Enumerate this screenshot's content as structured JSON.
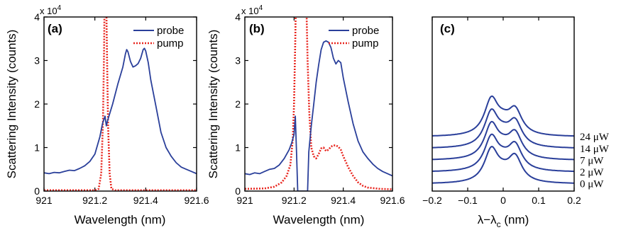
{
  "chart_data": [
    {
      "panel_label": "(a)",
      "type": "line",
      "xlabel": "Wavelength (nm)",
      "ylabel": "Scattering Intensity (counts)",
      "multiplier": "x 10",
      "multiplier_exp": "4",
      "xlim": [
        921.0,
        921.6
      ],
      "ylim": [
        0,
        4
      ],
      "xticks": [
        "921",
        "921.2",
        "921.4",
        "921.6"
      ],
      "yticks": [
        "0",
        "1",
        "2",
        "3",
        "4"
      ],
      "legend_position": "top-right",
      "series": [
        {
          "name": "probe",
          "color": "#2a3f9a",
          "style": "solid",
          "points": [
            [
              921.0,
              0.42
            ],
            [
              921.02,
              0.4
            ],
            [
              921.04,
              0.43
            ],
            [
              921.06,
              0.42
            ],
            [
              921.08,
              0.45
            ],
            [
              921.1,
              0.48
            ],
            [
              921.12,
              0.47
            ],
            [
              921.14,
              0.52
            ],
            [
              921.16,
              0.58
            ],
            [
              921.18,
              0.68
            ],
            [
              921.2,
              0.85
            ],
            [
              921.22,
              1.25
            ],
            [
              921.23,
              1.55
            ],
            [
              921.24,
              1.72
            ],
            [
              921.245,
              1.5
            ],
            [
              921.25,
              1.62
            ],
            [
              921.27,
              2.0
            ],
            [
              921.29,
              2.45
            ],
            [
              921.31,
              2.85
            ],
            [
              921.32,
              3.15
            ],
            [
              921.325,
              3.25
            ],
            [
              921.33,
              3.2
            ],
            [
              921.34,
              2.98
            ],
            [
              921.35,
              2.85
            ],
            [
              921.36,
              2.88
            ],
            [
              921.37,
              2.93
            ],
            [
              921.38,
              3.05
            ],
            [
              921.39,
              3.25
            ],
            [
              921.395,
              3.28
            ],
            [
              921.4,
              3.22
            ],
            [
              921.41,
              2.95
            ],
            [
              921.42,
              2.55
            ],
            [
              921.44,
              1.95
            ],
            [
              921.46,
              1.35
            ],
            [
              921.48,
              1.0
            ],
            [
              921.5,
              0.8
            ],
            [
              921.52,
              0.65
            ],
            [
              921.54,
              0.55
            ],
            [
              921.56,
              0.5
            ],
            [
              921.58,
              0.45
            ],
            [
              921.6,
              0.4
            ]
          ]
        },
        {
          "name": "pump",
          "color": "#e8251e",
          "style": "dotted",
          "points": [
            [
              921.0,
              0.02
            ],
            [
              921.2,
              0.02
            ],
            [
              921.215,
              0.05
            ],
            [
              921.225,
              0.4
            ],
            [
              921.232,
              1.6
            ],
            [
              921.236,
              3.2
            ],
            [
              921.238,
              4.3
            ],
            [
              921.245,
              4.3
            ],
            [
              921.248,
              3.0
            ],
            [
              921.252,
              1.5
            ],
            [
              921.258,
              0.4
            ],
            [
              921.265,
              0.05
            ],
            [
              921.28,
              0.02
            ],
            [
              921.6,
              0.02
            ]
          ]
        }
      ]
    },
    {
      "panel_label": "(b)",
      "type": "line",
      "xlabel": "Wavelength (nm)",
      "ylabel": "Scattering Intensity (counts)",
      "multiplier": "x 10",
      "multiplier_exp": "4",
      "xlim": [
        921.0,
        921.6
      ],
      "ylim": [
        0,
        4
      ],
      "xticks": [
        "921",
        "921.2",
        "921.4",
        "921.6"
      ],
      "yticks": [
        "0",
        "1",
        "2",
        "3",
        "4"
      ],
      "legend_position": "top-right",
      "series": [
        {
          "name": "probe",
          "color": "#2a3f9a",
          "style": "solid",
          "points": [
            [
              921.0,
              0.4
            ],
            [
              921.02,
              0.38
            ],
            [
              921.04,
              0.42
            ],
            [
              921.06,
              0.4
            ],
            [
              921.08,
              0.45
            ],
            [
              921.1,
              0.5
            ],
            [
              921.12,
              0.52
            ],
            [
              921.14,
              0.6
            ],
            [
              921.16,
              0.75
            ],
            [
              921.18,
              0.95
            ],
            [
              921.19,
              1.1
            ],
            [
              921.2,
              1.3
            ],
            [
              921.205,
              1.72
            ],
            [
              921.21,
              0.9
            ],
            [
              921.215,
              0.0
            ],
            [
              921.255,
              0.0
            ],
            [
              921.26,
              0.9
            ],
            [
              921.27,
              1.5
            ],
            [
              921.28,
              2.0
            ],
            [
              921.29,
              2.5
            ],
            [
              921.3,
              2.9
            ],
            [
              921.31,
              3.25
            ],
            [
              921.32,
              3.42
            ],
            [
              921.33,
              3.45
            ],
            [
              921.34,
              3.42
            ],
            [
              921.35,
              3.3
            ],
            [
              921.36,
              3.05
            ],
            [
              921.37,
              2.92
            ],
            [
              921.38,
              3.0
            ],
            [
              921.39,
              2.95
            ],
            [
              921.4,
              2.6
            ],
            [
              921.42,
              2.05
            ],
            [
              921.44,
              1.55
            ],
            [
              921.46,
              1.15
            ],
            [
              921.48,
              0.9
            ],
            [
              921.5,
              0.75
            ],
            [
              921.52,
              0.62
            ],
            [
              921.54,
              0.52
            ],
            [
              921.56,
              0.45
            ],
            [
              921.58,
              0.4
            ],
            [
              921.6,
              0.35
            ]
          ]
        },
        {
          "name": "pump",
          "color": "#e8251e",
          "style": "dotted",
          "points": [
            [
              921.0,
              0.05
            ],
            [
              921.08,
              0.06
            ],
            [
              921.12,
              0.1
            ],
            [
              921.15,
              0.2
            ],
            [
              921.17,
              0.35
            ],
            [
              921.185,
              0.6
            ],
            [
              921.195,
              1.2
            ],
            [
              921.2,
              2.0
            ],
            [
              921.205,
              3.5
            ],
            [
              921.207,
              4.3
            ],
            [
              921.25,
              4.3
            ],
            [
              921.255,
              3.0
            ],
            [
              921.262,
              1.8
            ],
            [
              921.27,
              1.0
            ],
            [
              921.28,
              0.8
            ],
            [
              921.29,
              0.75
            ],
            [
              921.3,
              0.85
            ],
            [
              921.31,
              0.98
            ],
            [
              921.32,
              1.0
            ],
            [
              921.33,
              0.92
            ],
            [
              921.34,
              0.95
            ],
            [
              921.35,
              1.02
            ],
            [
              921.36,
              1.05
            ],
            [
              921.37,
              1.05
            ],
            [
              921.38,
              1.02
            ],
            [
              921.39,
              0.95
            ],
            [
              921.4,
              0.8
            ],
            [
              921.42,
              0.55
            ],
            [
              921.44,
              0.35
            ],
            [
              921.46,
              0.2
            ],
            [
              921.48,
              0.12
            ],
            [
              921.5,
              0.08
            ],
            [
              921.55,
              0.05
            ],
            [
              921.6,
              0.04
            ]
          ]
        }
      ]
    },
    {
      "panel_label": "(c)",
      "type": "line",
      "xlabel_main": "λ−λ",
      "xlabel_sub": "c",
      "xlabel_unit": " (nm)",
      "xlim": [
        -0.2,
        0.2
      ],
      "xticks": [
        "−0.2",
        "−0.1",
        "0",
        "0.1",
        "0.2"
      ],
      "peak_positions": [
        -0.033,
        0.033
      ],
      "series": [
        {
          "name": "0 μW",
          "color": "#2a3f9a",
          "offset": 0.0,
          "peak_heights": [
            1.3,
            1.0
          ],
          "dip_depth": 0.62
        },
        {
          "name": "2 μW",
          "color": "#2a3f9a",
          "offset": 0.45,
          "peak_heights": [
            1.32,
            1.0
          ],
          "dip_depth": 0.7
        },
        {
          "name": "7 μW",
          "color": "#2a3f9a",
          "offset": 0.9,
          "peak_heights": [
            1.35,
            1.0
          ],
          "dip_depth": 0.78
        },
        {
          "name": "14 μW",
          "color": "#2a3f9a",
          "offset": 1.35,
          "peak_heights": [
            1.38,
            1.0
          ],
          "dip_depth": 0.85
        },
        {
          "name": "24 μW",
          "color": "#2a3f9a",
          "offset": 1.8,
          "peak_heights": [
            1.42,
            1.0
          ],
          "dip_depth": 0.92
        }
      ]
    }
  ]
}
